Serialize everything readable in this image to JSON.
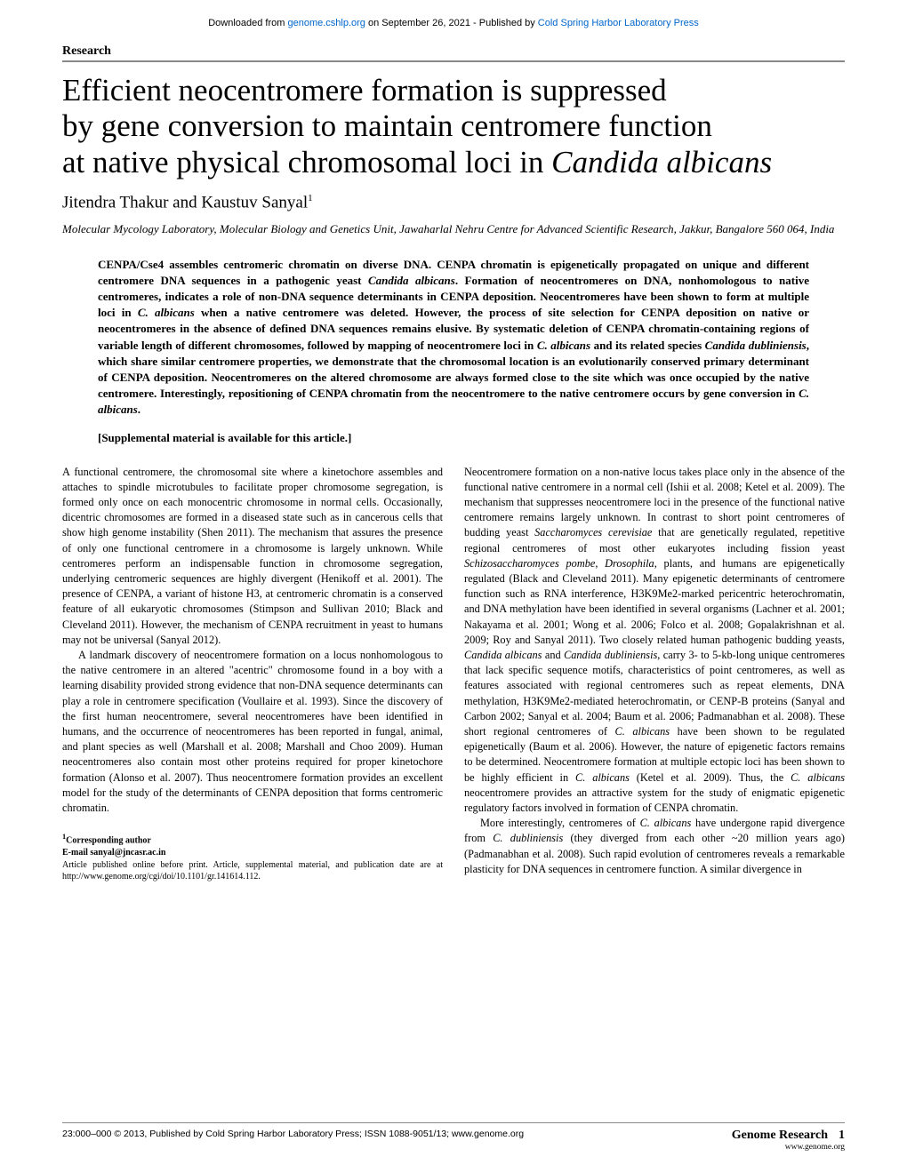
{
  "download_bar": {
    "prefix": "Downloaded from ",
    "link1": "genome.cshlp.org",
    "mid": " on September 26, 2021 - Published by ",
    "link2": "Cold Spring Harbor Laboratory Press"
  },
  "section_label": "Research",
  "title_line1": "Efficient neocentromere formation is suppressed",
  "title_line2": "by gene conversion to maintain centromere function",
  "title_line3_a": "at native physical chromosomal loci in ",
  "title_line3_b": "Candida albicans",
  "authors": "Jitendra Thakur and Kaustuv Sanyal",
  "authors_sup": "1",
  "affiliation": "Molecular Mycology Laboratory, Molecular Biology and Genetics Unit, Jawaharlal Nehru Centre for Advanced Scientific Research, Jakkur, Bangalore 560 064, India",
  "abstract": {
    "p1_a": "CENPA/Cse4 assembles centromeric chromatin on diverse DNA. CENPA chromatin is epigenetically propagated on unique and different centromere DNA sequences in a pathogenic yeast ",
    "p1_b": "Candida albicans",
    "p1_c": ". Formation of neocentromeres on DNA, nonhomologous to native centromeres, indicates a role of non-DNA sequence determinants in CENPA deposition. Neocentromeres have been shown to form at multiple loci in ",
    "p1_d": "C. albicans",
    "p1_e": " when a native centromere was deleted. However, the process of site selection for CENPA deposition on native or neocentromeres in the absence of defined DNA sequences remains elusive. By systematic deletion of CENPA chromatin-containing regions of variable length of different chromosomes, followed by mapping of neocentromere loci in ",
    "p1_f": "C. albicans",
    "p1_g": " and its related species ",
    "p1_h": "Candida dubliniensis",
    "p1_i": ", which share similar centromere properties, we demonstrate that the chromosomal location is an evolutionarily conserved primary determinant of CENPA deposition. Neocentromeres on the altered chromosome are always formed close to the site which was once occupied by the native centromere. Interestingly, repositioning of CENPA chromatin from the neocentromere to the native centromere occurs by gene conversion in ",
    "p1_j": "C. albicans",
    "p1_k": "."
  },
  "supplemental": "[Supplemental material is available for this article.]",
  "left_col": {
    "p1": "A functional centromere, the chromosomal site where a kinetochore assembles and attaches to spindle microtubules to facilitate proper chromosome segregation, is formed only once on each monocentric chromosome in normal cells. Occasionally, dicentric chromosomes are formed in a diseased state such as in cancerous cells that show high genome instability (Shen 2011). The mechanism that assures the presence of only one functional centromere in a chromosome is largely unknown. While centromeres perform an indispensable function in chromosome segregation, underlying centromeric sequences are highly divergent (Henikoff et al. 2001). The presence of CENPA, a variant of histone H3, at centromeric chromatin is a conserved feature of all eukaryotic chromosomes (Stimpson and Sullivan 2010; Black and Cleveland 2011). However, the mechanism of CENPA recruitment in yeast to humans may not be universal (Sanyal 2012).",
    "p2": "A landmark discovery of neocentromere formation on a locus nonhomologous to the native centromere in an altered \"acentric\" chromosome found in a boy with a learning disability provided strong evidence that non-DNA sequence determinants can play a role in centromere specification (Voullaire et al. 1993). Since the discovery of the first human neocentromere, several neocentromeres have been identified in humans, and the occurrence of neocentromeres has been reported in fungal, animal, and plant species as well (Marshall et al. 2008; Marshall and Choo 2009). Human neocentromeres also contain most other proteins required for proper kinetochore formation (Alonso et al. 2007). Thus neocentromere formation provides an excellent model for the study of the determinants of CENPA deposition that forms centromeric chromatin."
  },
  "right_col": {
    "p1_a": "Neocentromere formation on a non-native locus takes place only in the absence of the functional native centromere in a normal cell (Ishii et al. 2008; Ketel et al. 2009). The mechanism that suppresses neocentromere loci in the presence of the functional native centromere remains largely unknown. In contrast to short point centromeres of budding yeast ",
    "p1_b": "Saccharomyces cerevisiae",
    "p1_c": " that are genetically regulated, repetitive regional centromeres of most other eukaryotes including fission yeast ",
    "p1_d": "Schizosaccharomyces pombe",
    "p1_e": ", ",
    "p1_f": "Drosophila",
    "p1_g": ", plants, and humans are epigenetically regulated (Black and Cleveland 2011). Many epigenetic determinants of centromere function such as RNA interference, H3K9Me2-marked pericentric heterochromatin, and DNA methylation have been identified in several organisms (Lachner et al. 2001; Nakayama et al. 2001; Wong et al. 2006; Folco et al. 2008; Gopalakrishnan et al. 2009; Roy and Sanyal 2011). Two closely related human pathogenic budding yeasts, ",
    "p1_h": "Candida albicans",
    "p1_i": " and ",
    "p1_j": "Candida dubliniensis",
    "p1_k": ", carry 3- to 5-kb-long unique centromeres that lack specific sequence motifs, characteristics of point centromeres, as well as features associated with regional centromeres such as repeat elements, DNA methylation, H3K9Me2-mediated heterochromatin, or CENP-B proteins (Sanyal and Carbon 2002; Sanyal et al. 2004; Baum et al. 2006; Padmanabhan et al. 2008). These short regional centromeres of ",
    "p1_l": "C. albicans",
    "p1_m": " have been shown to be regulated epigenetically (Baum et al. 2006). However, the nature of epigenetic factors remains to be determined. Neocentromere formation at multiple ectopic loci has been shown to be highly efficient in ",
    "p1_n": "C. albicans",
    "p1_o": " (Ketel et al. 2009). Thus, the ",
    "p1_p": "C. albicans",
    "p1_q": " neocentromere provides an attractive system for the study of enigmatic epigenetic regulatory factors involved in formation of CENPA chromatin.",
    "p2_a": "More interestingly, centromeres of ",
    "p2_b": "C. albicans",
    "p2_c": " have undergone rapid divergence from ",
    "p2_d": "C. dubliniensis",
    "p2_e": " (they diverged from each other ~20 million years ago) (Padmanabhan et al. 2008). Such rapid evolution of centromeres reveals a remarkable plasticity for DNA sequences in centromere function. A similar divergence in"
  },
  "corresponding": {
    "line1": "Corresponding author",
    "line2": "E-mail sanyal@jncasr.ac.in",
    "line3": "Article published online before print. Article, supplemental material, and publication date are at http://www.genome.org/cgi/doi/10.1101/gr.141614.112."
  },
  "footer": {
    "left": "23:000–000 © 2013, Published by Cold Spring Harbor Laboratory Press; ISSN 1088-9051/13; www.genome.org",
    "gr": "Genome Research",
    "pg": "1",
    "url": "www.genome.org"
  },
  "colors": {
    "link": "#0066cc",
    "rule": "#888888",
    "text": "#000000",
    "background": "#ffffff"
  },
  "typography": {
    "title_fontsize": 35,
    "authors_fontsize": 19,
    "affiliation_fontsize": 13,
    "abstract_fontsize": 13,
    "body_fontsize": 12.3,
    "footer_fontsize": 10.5
  }
}
